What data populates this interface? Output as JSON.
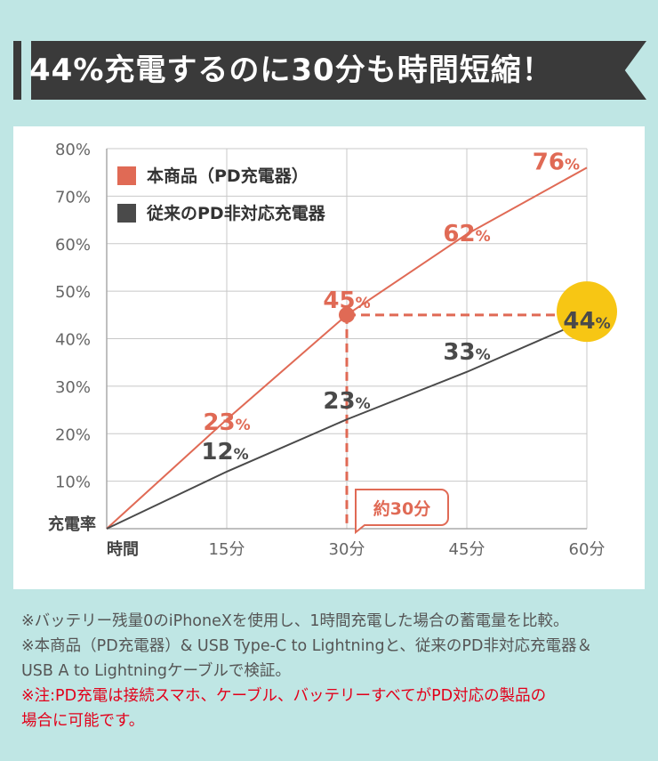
{
  "banner": {
    "title": "44%充電するのに30分も時間短縮！"
  },
  "chart_data": {
    "type": "line",
    "x": [
      0,
      15,
      30,
      45,
      60
    ],
    "x_tick_labels": [
      "時間",
      "15分",
      "30分",
      "45分",
      "60分"
    ],
    "y_tick_labels": [
      "10%",
      "20%",
      "30%",
      "40%",
      "50%",
      "60%",
      "70%",
      "80%"
    ],
    "ylabel": "充電率",
    "xlim": [
      0,
      60
    ],
    "ylim": [
      0,
      80
    ],
    "grid": true,
    "legend_position": "top-left",
    "series": [
      {
        "name": "本商品（PD充電器）",
        "color": "#e06a55",
        "values": [
          0,
          23,
          45,
          62,
          76
        ],
        "labels": [
          "",
          "23",
          "45",
          "62",
          "76"
        ]
      },
      {
        "name": "従来のPD非対応充電器",
        "color": "#4a4a4a",
        "values": [
          0,
          12,
          23,
          33,
          44
        ],
        "labels": [
          "",
          "12",
          "23",
          "33",
          "44"
        ]
      }
    ],
    "percent_sign": "%",
    "annotation": {
      "text": "約30分",
      "color": "#e06a55"
    },
    "highlight_color": "#f7c614"
  },
  "notes": [
    "※バッテリー残量0のiPhoneXを使用し、1時間充電した場合の蓄電量を比較。",
    "※本商品（PD充電器）& USB Type-C to Lightningと、従来のPD非対応充電器＆",
    "USB A to Lightningケーブルで検証。"
  ],
  "warning": [
    "※注:PD充電は接続スマホ、ケーブル、バッテリーすべてがPD対応の製品の",
    "場合に可能です。"
  ]
}
